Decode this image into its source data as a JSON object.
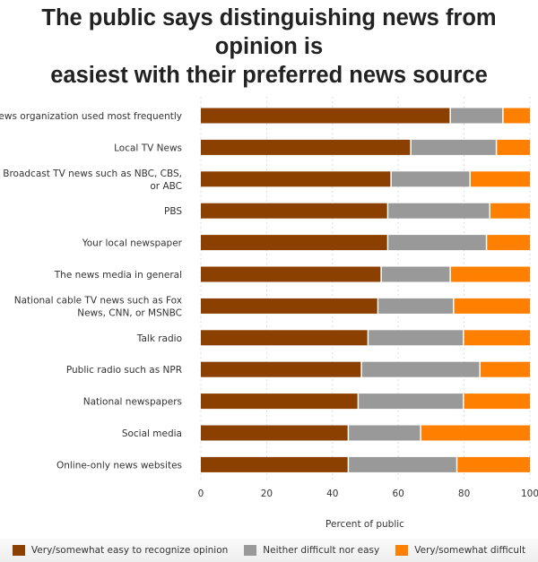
{
  "chart_data": {
    "type": "bar",
    "orientation": "horizontal",
    "stacked": true,
    "title": "The public says distinguishing news from opinion is easiest with their preferred news source",
    "xlabel": "Percent of public",
    "ylabel": "",
    "xlim": [
      0,
      100
    ],
    "xticks": [
      "0",
      "20",
      "40",
      "60",
      "80",
      "100"
    ],
    "grid": true,
    "legend_position": "bottom",
    "categories": [
      [
        "News organization used most frequently"
      ],
      [
        "Local TV News"
      ],
      [
        "Broadcast TV news such as NBC, CBS,",
        "or ABC"
      ],
      [
        "PBS"
      ],
      [
        "Your local newspaper"
      ],
      [
        "The news media in general"
      ],
      [
        "National cable TV news such as Fox",
        "News, CNN, or MSNBC"
      ],
      [
        "Talk radio"
      ],
      [
        "Public radio such as NPR"
      ],
      [
        "National newspapers"
      ],
      [
        "Social media"
      ],
      [
        "Online-only news websites"
      ]
    ],
    "series": [
      {
        "name": "Very/somewhat easy to recognize opinion",
        "color": "#8B4000",
        "values": [
          76,
          64,
          58,
          57,
          57,
          55,
          54,
          51,
          49,
          48,
          45,
          45
        ]
      },
      {
        "name": "Neither difficult nor easy",
        "color": "#999999",
        "values": [
          16,
          26,
          24,
          31,
          30,
          21,
          23,
          29,
          36,
          32,
          22,
          33
        ]
      },
      {
        "name": "Very/somewhat difficult",
        "color": "#FF8000",
        "values": [
          8,
          10,
          18,
          12,
          13,
          24,
          23,
          20,
          15,
          20,
          33,
          22
        ]
      }
    ]
  }
}
